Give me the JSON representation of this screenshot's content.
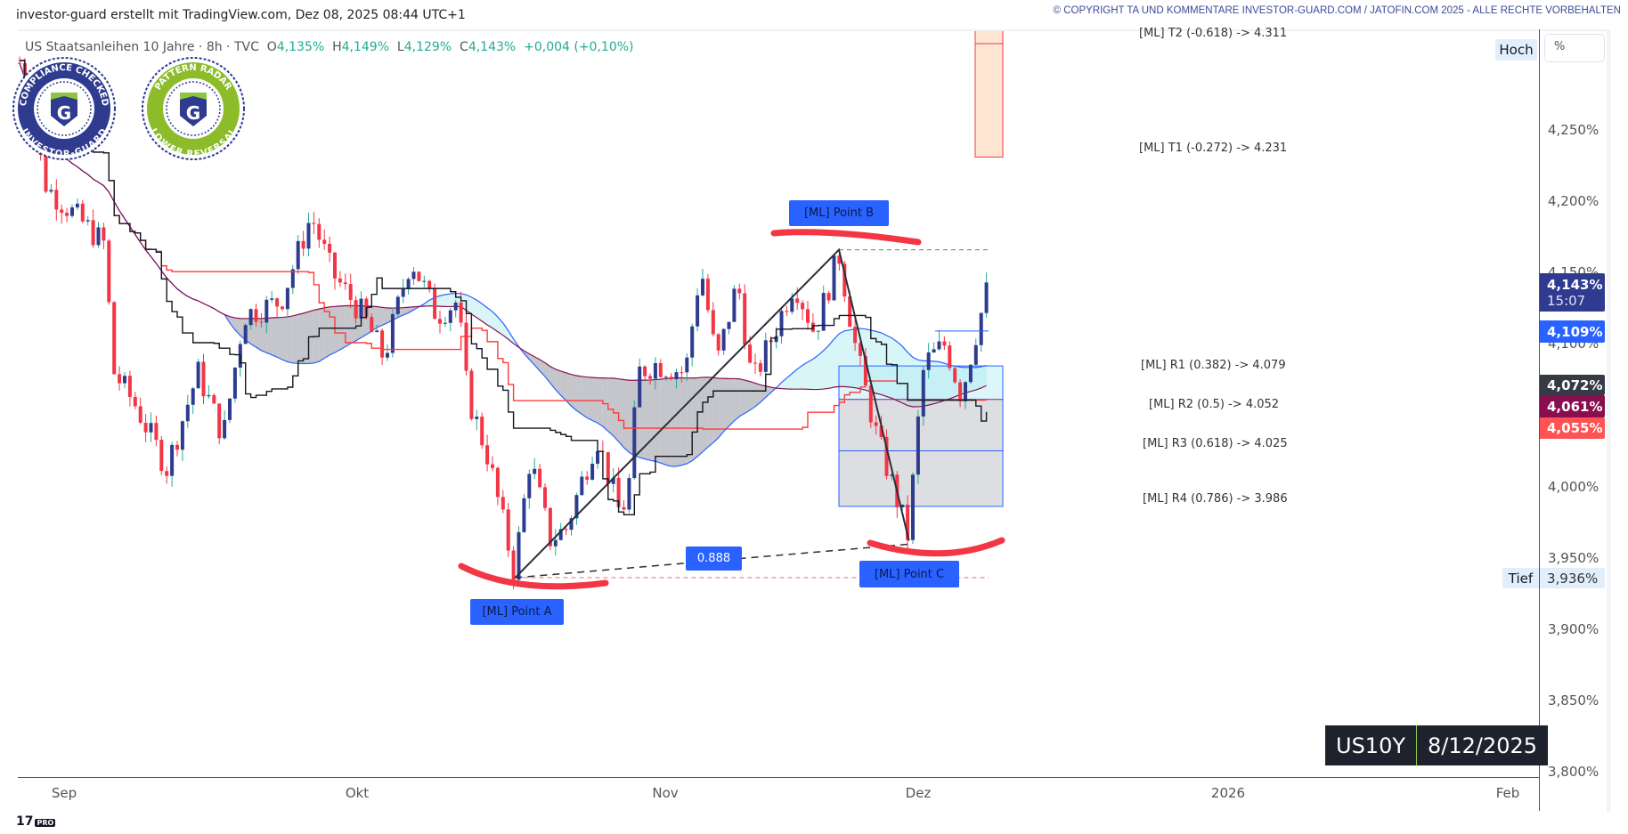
{
  "header": {
    "credit": "investor-guard erstellt mit TradingView.com, Dez 08, 2025 08:44 UTC+1",
    "copyright": "© COPYRIGHT TA UND KOMMENTARE INVESTOR-GUARD.COM / JATOFIN.COM 2025 - ALLE RECHTE VORBEHALTEN"
  },
  "legend": {
    "symbol": "US Staatsanleihen 10 Jahre · 8h · TVC",
    "o_label": "O",
    "o": "4,135%",
    "h_label": "H",
    "h": "4,149%",
    "l_label": "L",
    "l": "4,129%",
    "c_label": "C",
    "c": "4,143%",
    "change": "+0,004 (+0,10%)"
  },
  "badges": {
    "compliance": {
      "top": "COMPLIANCE CHECKED",
      "bottom": "INVESTOR-GUARD",
      "letter": "G"
    },
    "radar": {
      "top": "PATTERN RADAR",
      "bottom": "LOWER REVERSAL",
      "letter": "G"
    }
  },
  "annotations": {
    "t2": "[ML] T2 (-0.618) -> 4.311",
    "t1": "[ML] T1 (-0.272) -> 4.231",
    "r1": "[ML] R1 (0.382) -> 4.079",
    "r2": "[ML] R2 (0.5) -> 4.052",
    "r3": "[ML] R3 (0.618) -> 4.025",
    "r4": "[ML] R4 (0.786) -> 3.986",
    "point_a": "[ML] Point A",
    "point_b": "[ML] Point  B",
    "point_c": "[ML] Point  C",
    "ratio": "0.888"
  },
  "price_axis": {
    "ticks": [
      "4,250%",
      "4,200%",
      "4,150%",
      "4,100%",
      "4,000%",
      "3,950%",
      "3,900%",
      "3,850%",
      "3,800%"
    ],
    "tick_values": [
      4.25,
      4.2,
      4.15,
      4.1,
      4.0,
      3.95,
      3.9,
      3.85,
      3.8
    ],
    "hoch": "Hoch",
    "percent": "%",
    "tief": "Tief",
    "tief_value": "3,936%",
    "last": "4,143%",
    "countdown": "15:07",
    "blue_line": "4,109%",
    "black_line": "4,072%",
    "maroon_line": "4,061%",
    "red_line": "4,055%"
  },
  "time_axis": {
    "labels": [
      "Sep",
      "Okt",
      "Nov",
      "Dez",
      "2026",
      "Feb"
    ]
  },
  "symbol_box": {
    "symbol": "US10Y",
    "date": "8/12/2025"
  },
  "footer": {
    "logo": "17",
    "tag": "PRO"
  },
  "chart_data": {
    "type": "candlestick",
    "title": "US Staatsanleihen 10 Jahre · 8h · TVC",
    "time_unit": "days since 2025-09-01",
    "ylim": [
      3.8,
      4.3
    ],
    "path": [
      [
        -4.5,
        4.297
      ],
      [
        -1.8,
        4.21
      ],
      [
        4.1,
        4.17
      ],
      [
        5.1,
        4.08
      ],
      [
        7.3,
        4.057
      ],
      [
        10.5,
        4.013
      ],
      [
        13.7,
        4.08
      ],
      [
        16.3,
        4.035
      ],
      [
        18.4,
        4.12
      ],
      [
        22.2,
        4.13
      ],
      [
        25.3,
        4.19
      ],
      [
        27.4,
        4.15
      ],
      [
        30.6,
        4.12
      ],
      [
        32.7,
        4.09
      ],
      [
        35.4,
        4.16
      ],
      [
        38,
        4.12
      ],
      [
        40.1,
        4.13
      ],
      [
        41.1,
        4.064
      ],
      [
        43.2,
        4.02
      ],
      [
        45.8,
        3.94
      ],
      [
        47.4,
        4.02
      ],
      [
        49.4,
        3.963
      ],
      [
        51,
        3.97
      ],
      [
        54.1,
        4.035
      ],
      [
        56.3,
        3.984
      ],
      [
        57.2,
        3.99
      ],
      [
        58.3,
        4.08
      ],
      [
        59.9,
        4.086
      ],
      [
        63.4,
        4.08
      ],
      [
        65.2,
        4.155
      ],
      [
        67.1,
        4.086
      ],
      [
        69.6,
        4.144
      ],
      [
        71.3,
        4.072
      ],
      [
        73.9,
        4.108
      ],
      [
        76.3,
        4.144
      ],
      [
        78.7,
        4.108
      ],
      [
        81.6,
        4.163
      ],
      [
        83.7,
        4.093
      ],
      [
        86.1,
        4.035
      ],
      [
        88,
        4.0
      ],
      [
        89.8,
        3.965
      ],
      [
        91.6,
        4.086
      ],
      [
        93.7,
        4.1
      ],
      [
        95.3,
        4.064
      ],
      [
        96.8,
        4.108
      ],
      [
        98.1,
        4.143
      ]
    ],
    "points": {
      "A": [
        45.9,
        3.936
      ],
      "B": [
        81.6,
        4.166
      ],
      "C": [
        89.9,
        3.962
      ]
    },
    "levels": {
      "t1": 4.231,
      "t2": 4.311,
      "r1": 4.079,
      "r2": 4.052,
      "r3": 4.025,
      "r4": 3.986,
      "blue": 4.109
    },
    "colors": {
      "up": "#2e3b8f",
      "down": "#f23645",
      "blue": "#2962ff",
      "maroon": "#880e4f",
      "black": "#131722",
      "red": "#ff5252"
    }
  }
}
